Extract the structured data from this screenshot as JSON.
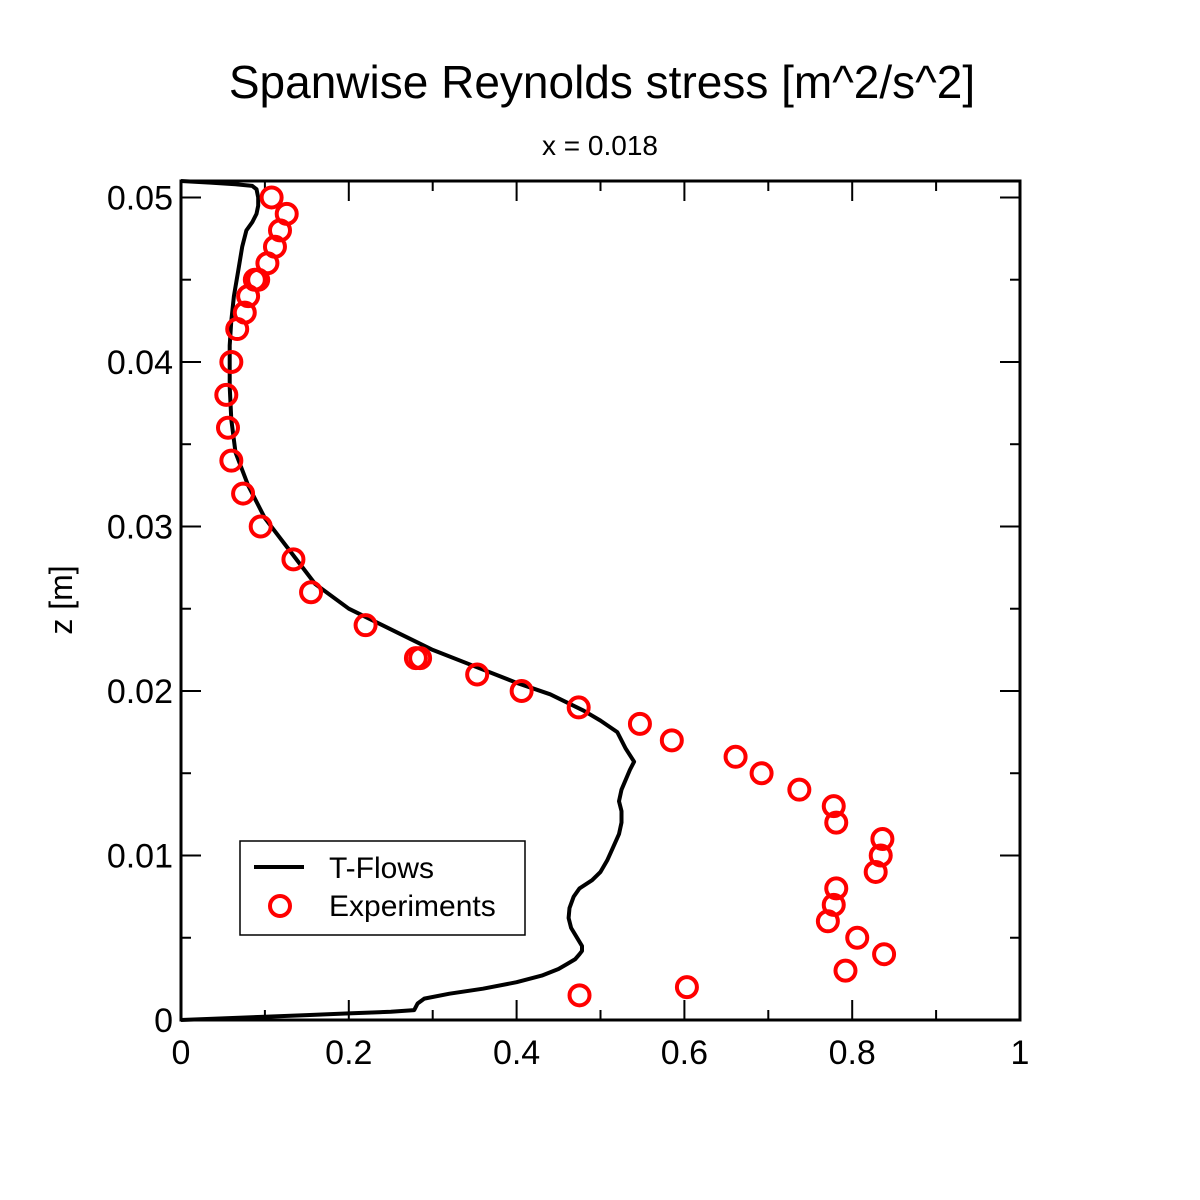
{
  "chart_data": {
    "type": "line",
    "title": "Spanwise Reynolds stress [m^2/s^2]",
    "subtitle": "x = 0.018",
    "xlabel": "",
    "ylabel": "z [m]",
    "xlim": [
      0,
      1
    ],
    "ylim": [
      0,
      0.051
    ],
    "xticks": [
      0,
      0.2,
      0.4,
      0.6,
      0.8,
      1
    ],
    "xtick_labels": [
      "0",
      "0.2",
      "0.4",
      "0.6",
      "0.8",
      "1"
    ],
    "yticks": [
      0,
      0.01,
      0.02,
      0.03,
      0.04,
      0.05
    ],
    "ytick_labels": [
      "0",
      "0.01",
      "0.02",
      "0.03",
      "0.04",
      "0.05"
    ],
    "grid": false,
    "legend_position": "bottom-left",
    "series": [
      {
        "name": "T-Flows",
        "style": "line",
        "color": "#000000",
        "x": [
          0.0,
          0.05,
          0.1,
          0.15,
          0.2,
          0.25,
          0.278,
          0.282,
          0.29,
          0.32,
          0.36,
          0.4,
          0.43,
          0.45,
          0.46,
          0.47,
          0.475,
          0.478,
          0.478,
          0.472,
          0.465,
          0.462,
          0.463,
          0.468,
          0.475,
          0.49,
          0.5,
          0.508,
          0.515,
          0.522,
          0.525,
          0.525,
          0.522,
          0.525,
          0.535,
          0.54,
          0.53,
          0.52,
          0.5,
          0.48,
          0.44,
          0.4,
          0.35,
          0.3,
          0.26,
          0.2,
          0.16,
          0.13,
          0.1,
          0.08,
          0.065,
          0.06,
          0.058,
          0.058,
          0.06,
          0.063,
          0.068,
          0.073,
          0.078,
          0.085,
          0.09,
          0.092,
          0.092,
          0.09,
          0.085,
          0.065,
          0.035,
          0.0
        ],
        "y": [
          0.0,
          0.0001,
          0.0002,
          0.0003,
          0.0004,
          0.0005,
          0.0006,
          0.001,
          0.0013,
          0.0016,
          0.0019,
          0.0023,
          0.0027,
          0.0031,
          0.0034,
          0.0037,
          0.004,
          0.0042,
          0.0045,
          0.005,
          0.0056,
          0.0062,
          0.0068,
          0.0075,
          0.008,
          0.0085,
          0.009,
          0.0097,
          0.0105,
          0.0113,
          0.012,
          0.0127,
          0.0133,
          0.014,
          0.0152,
          0.0157,
          0.0165,
          0.0175,
          0.0182,
          0.0188,
          0.0198,
          0.0205,
          0.0215,
          0.0225,
          0.0235,
          0.025,
          0.0265,
          0.0285,
          0.0305,
          0.0325,
          0.0345,
          0.0365,
          0.0385,
          0.041,
          0.0425,
          0.044,
          0.0455,
          0.047,
          0.048,
          0.0485,
          0.049,
          0.0495,
          0.05,
          0.0505,
          0.0507,
          0.0508,
          0.0509,
          0.051
        ]
      },
      {
        "name": "Experiments",
        "style": "marker",
        "color": "#ff0000",
        "x": [
          0.475,
          0.603,
          0.792,
          0.838,
          0.806,
          0.771,
          0.778,
          0.781,
          0.828,
          0.834,
          0.836,
          0.781,
          0.778,
          0.737,
          0.692,
          0.661,
          0.585,
          0.547,
          0.474,
          0.406,
          0.353,
          0.285,
          0.28,
          0.22,
          0.155,
          0.134,
          0.095,
          0.074,
          0.06,
          0.056,
          0.054,
          0.06,
          0.067,
          0.076,
          0.08,
          0.088,
          0.092,
          0.103,
          0.112,
          0.118,
          0.126,
          0.108
        ],
        "y": [
          0.0015,
          0.002,
          0.003,
          0.004,
          0.005,
          0.006,
          0.007,
          0.008,
          0.009,
          0.01,
          0.011,
          0.012,
          0.013,
          0.014,
          0.015,
          0.016,
          0.017,
          0.018,
          0.019,
          0.02,
          0.021,
          0.022,
          0.022,
          0.024,
          0.026,
          0.028,
          0.03,
          0.032,
          0.034,
          0.036,
          0.038,
          0.04,
          0.042,
          0.043,
          0.044,
          0.045,
          0.045,
          0.046,
          0.047,
          0.048,
          0.049,
          0.05
        ]
      }
    ]
  }
}
